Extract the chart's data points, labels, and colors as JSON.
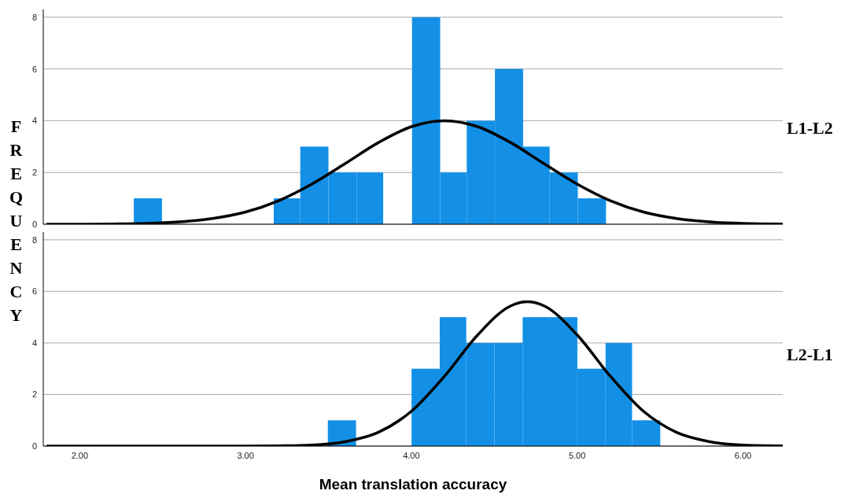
{
  "chart_data": [
    {
      "type": "histogram",
      "ylabel": "FREQUENCY",
      "annotations": [
        "L1-L2"
      ],
      "xlim": [
        1.78,
        6.24
      ],
      "ylim": [
        0,
        8.3
      ],
      "yticks": [
        0,
        2,
        4,
        6,
        8
      ],
      "tick_labels": "y",
      "grid": "y",
      "series": [
        {
          "type": "histogram",
          "color": "#1390e6",
          "bins": [
            2.33,
            2.5
          ],
          "values": [
            1
          ]
        },
        {
          "type": "histogram",
          "color": "#1390e6",
          "bins": [
            3.17,
            3.33,
            3.5,
            3.67,
            3.83
          ],
          "values": [
            1,
            3,
            2,
            2
          ]
        },
        {
          "type": "histogram",
          "color": "#1390e6",
          "bins": [
            4.0,
            4.17,
            4.33,
            4.5,
            4.67,
            4.83,
            5.0,
            5.17
          ],
          "values": [
            8,
            2,
            4,
            6,
            3,
            2,
            1
          ]
        },
        {
          "type": "line",
          "color": "#000000",
          "x": [
            1.8,
            2.0,
            2.2,
            2.4,
            2.6,
            2.8,
            3.0,
            3.2,
            3.4,
            3.6,
            3.8,
            4.0,
            4.2,
            4.4,
            4.6,
            4.8,
            5.0,
            5.2,
            5.4,
            5.6,
            5.8,
            6.0,
            6.24
          ],
          "values": [
            0,
            0,
            0.01,
            0.03,
            0.09,
            0.22,
            0.47,
            0.91,
            1.55,
            2.34,
            3.15,
            3.77,
            4,
            3.77,
            3.15,
            2.34,
            1.55,
            0.91,
            0.47,
            0.22,
            0.09,
            0.03,
            0.01
          ]
        }
      ]
    },
    {
      "type": "histogram",
      "xlabel": "Mean translation accuracy",
      "annotations": [
        "L2-L1"
      ],
      "xlim": [
        1.78,
        6.24
      ],
      "xticks": [
        {
          "value": 2,
          "label": "2.00"
        },
        {
          "value": 3,
          "label": "3.00"
        },
        {
          "value": 4,
          "label": "4.00"
        },
        {
          "value": 5,
          "label": "5.00"
        },
        {
          "value": 6,
          "label": "6.00"
        }
      ],
      "ylim": [
        0,
        8.3
      ],
      "yticks": [
        0,
        2,
        4,
        6,
        8
      ],
      "grid": "y",
      "series": [
        {
          "type": "histogram",
          "color": "#1390e6",
          "bins": [
            3.5,
            3.67
          ],
          "values": [
            1
          ]
        },
        {
          "type": "histogram",
          "color": "#1390e6",
          "bins": [
            4.0,
            4.17,
            4.33,
            4.5,
            4.67,
            4.83,
            5.0,
            5.17,
            5.33,
            5.5
          ],
          "values": [
            3,
            5,
            4,
            4,
            5,
            5,
            3,
            4,
            1
          ]
        },
        {
          "type": "line",
          "color": "#000000",
          "x": [
            1.8,
            2.6,
            3.0,
            3.2,
            3.4,
            3.6,
            3.8,
            4.0,
            4.2,
            4.4,
            4.6,
            4.7,
            4.8,
            5.0,
            5.2,
            5.4,
            5.6,
            5.8,
            6.0,
            6.24
          ],
          "values": [
            0,
            0,
            0,
            0.01,
            0.04,
            0.17,
            0.53,
            1.35,
            2.71,
            4.31,
            5.44,
            5.6,
            5.44,
            4.31,
            2.71,
            1.35,
            0.53,
            0.17,
            0.04,
            0.01
          ]
        }
      ]
    }
  ]
}
